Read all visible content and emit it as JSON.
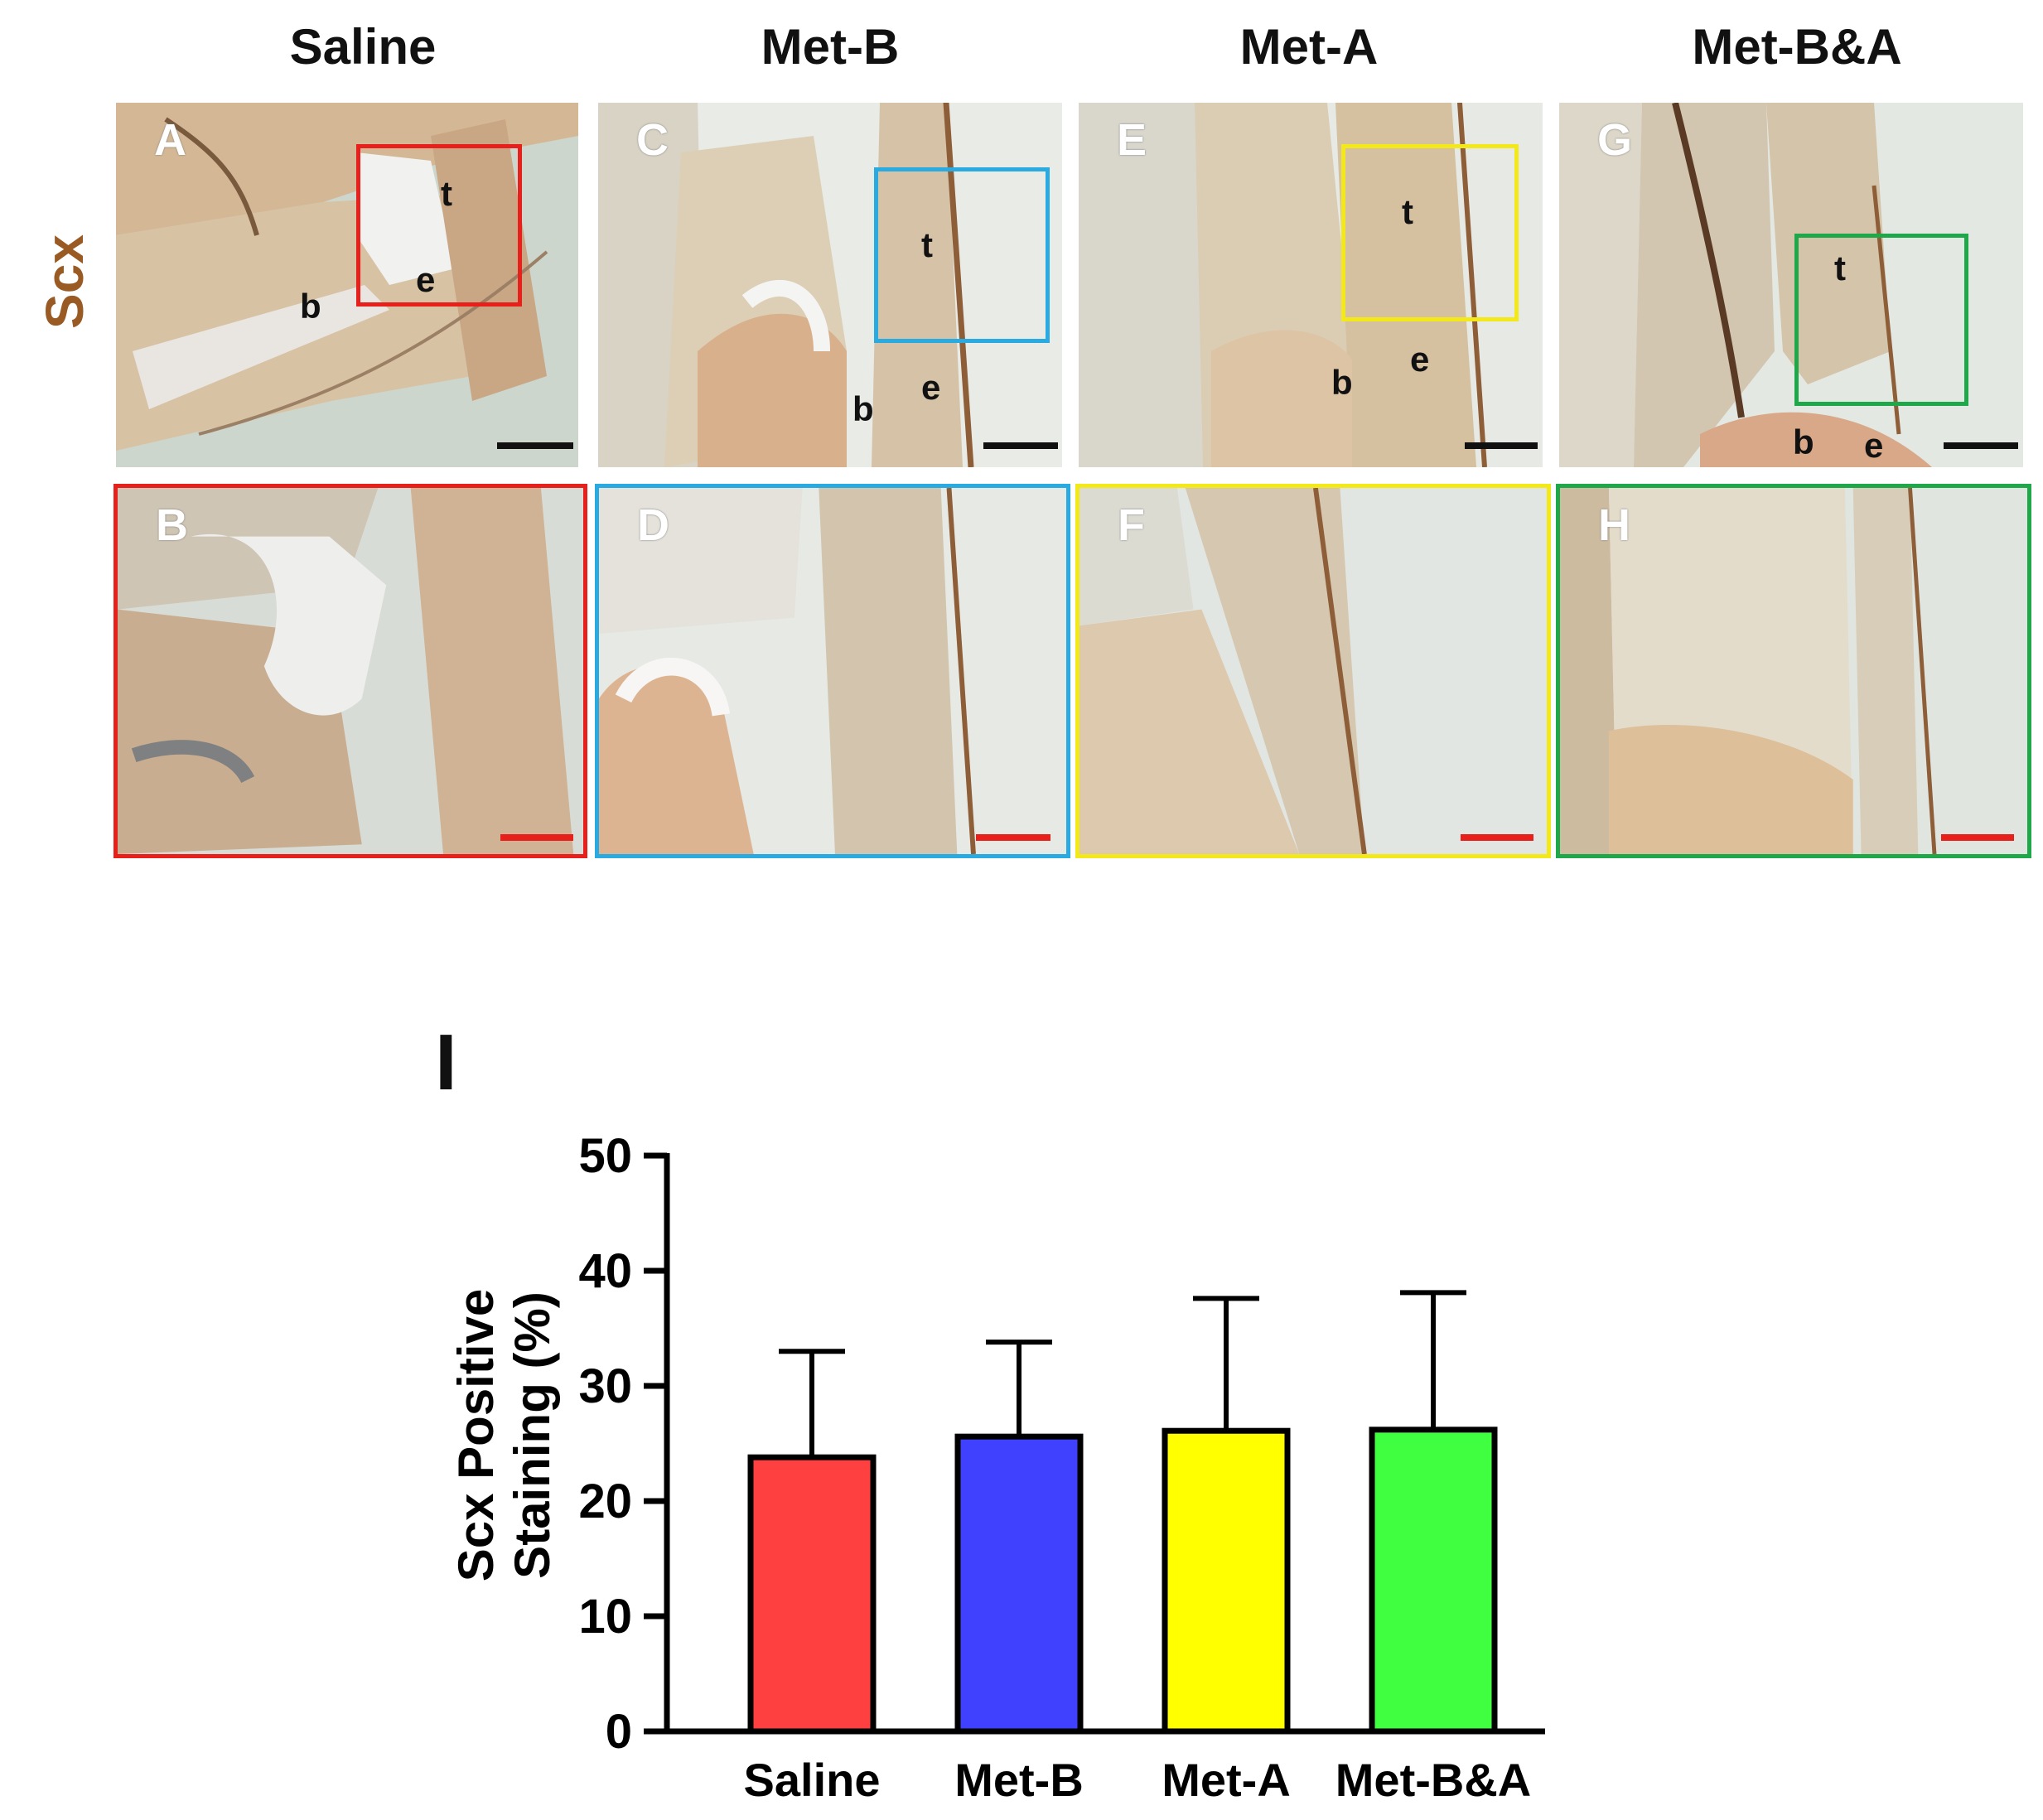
{
  "figure": {
    "row_label": "Scx",
    "row_label_color": "#9a5a24",
    "columns": [
      {
        "header": "Saline",
        "top_panel": "A",
        "bottom_panel": "B",
        "inset_color": "#e8201c",
        "labels": {
          "t": "t",
          "e": "e",
          "b": "b"
        }
      },
      {
        "header": "Met-B",
        "top_panel": "C",
        "bottom_panel": "D",
        "inset_color": "#29abe2",
        "labels": {
          "t": "t",
          "e": "e",
          "b": "b"
        }
      },
      {
        "header": "Met-A",
        "top_panel": "E",
        "bottom_panel": "F",
        "inset_color": "#f2e81a",
        "labels": {
          "t": "t",
          "e": "e",
          "b": "b"
        }
      },
      {
        "header": "Met-B&A",
        "top_panel": "G",
        "bottom_panel": "H",
        "inset_color": "#1fa84a",
        "labels": {
          "t": "t",
          "e": "e",
          "b": "b"
        }
      }
    ],
    "scalebar_colors": {
      "overview": "#111111",
      "zoom": "#e8201c"
    },
    "chart_panel_label": "I"
  },
  "chart_data": {
    "type": "bar",
    "title": "",
    "xlabel": "",
    "ylabel_lines": [
      "Scx Positive",
      "Staining (%)"
    ],
    "categories": [
      "Saline",
      "Met-B",
      "Met-A",
      "Met-B&A"
    ],
    "values": [
      23.8,
      25.6,
      26.1,
      26.2
    ],
    "error_upper": [
      33.0,
      33.8,
      37.6,
      38.1
    ],
    "colors": [
      "#ff4040",
      "#4040ff",
      "#ffff00",
      "#40ff40"
    ],
    "ylim": [
      0,
      50
    ],
    "yticks": [
      0,
      10,
      20,
      30,
      40,
      50
    ],
    "grid": false,
    "legend": "none"
  }
}
